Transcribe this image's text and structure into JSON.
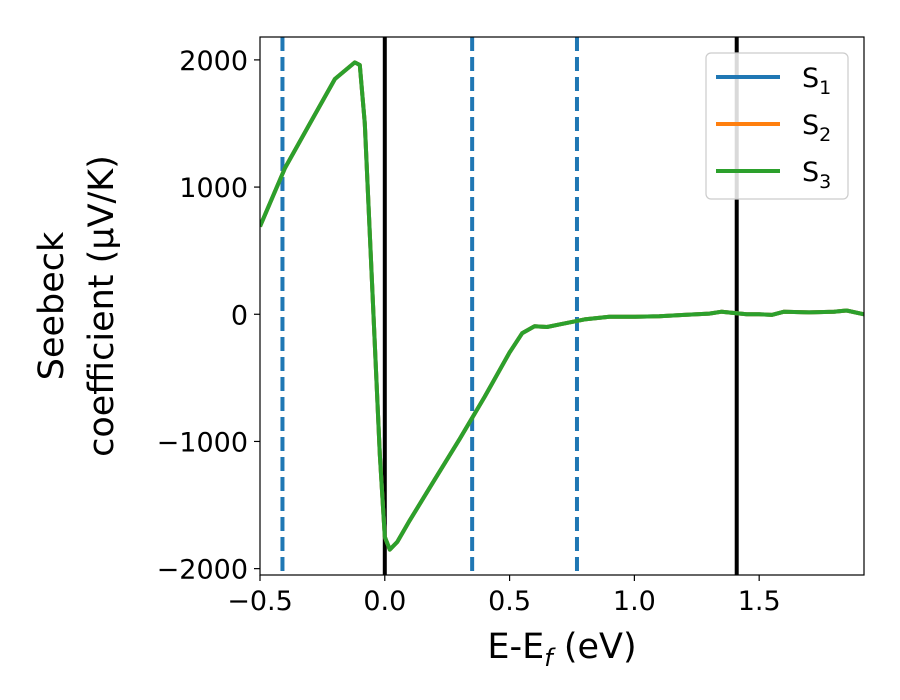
{
  "chart_data": {
    "type": "line",
    "xlabel": "E-E_f (eV)",
    "xlabel_parts": [
      "E-E",
      "f",
      " (eV)"
    ],
    "ylabel_lines": [
      "Seebeck",
      "coefficient  (μV/K)"
    ],
    "xlim": [
      -0.5,
      1.92
    ],
    "ylim": [
      -2050,
      2180
    ],
    "x_ticks": [
      -0.5,
      0.0,
      0.5,
      1.0,
      1.5
    ],
    "x_tick_labels": [
      "−0.5",
      "0.0",
      "0.5",
      "1.0",
      "1.5"
    ],
    "y_ticks": [
      -2000,
      -1000,
      0,
      1000,
      2000
    ],
    "y_tick_labels": [
      "−2000",
      "−1000",
      "0",
      "1000",
      "2000"
    ],
    "grid": false,
    "legend_position": "top-right",
    "series": [
      {
        "name": "S",
        "subscript": "1",
        "color": "#1f77b4",
        "x": [
          -0.5,
          -0.4,
          -0.3,
          -0.2,
          -0.12,
          -0.1,
          -0.08,
          -0.05,
          -0.02,
          0.0,
          0.02,
          0.05,
          0.1,
          0.2,
          0.3,
          0.4,
          0.5,
          0.55,
          0.6,
          0.65,
          0.7,
          0.8,
          0.9,
          1.0,
          1.1,
          1.2,
          1.3,
          1.35,
          1.4,
          1.45,
          1.5,
          1.55,
          1.6,
          1.7,
          1.8,
          1.85,
          1.92
        ],
        "y": [
          690,
          1150,
          1500,
          1850,
          1980,
          1960,
          1500,
          200,
          -1100,
          -1750,
          -1850,
          -1790,
          -1620,
          -1300,
          -980,
          -650,
          -300,
          -150,
          -95,
          -100,
          -80,
          -40,
          -20,
          -20,
          -15,
          -5,
          5,
          20,
          10,
          0,
          0,
          -5,
          20,
          15,
          20,
          30,
          0
        ]
      },
      {
        "name": "S",
        "subscript": "2",
        "color": "#ff7f0e",
        "x": [
          -0.5,
          -0.4,
          -0.3,
          -0.2,
          -0.12,
          -0.1,
          -0.08,
          -0.05,
          -0.02,
          0.0,
          0.02,
          0.05,
          0.1,
          0.2,
          0.3,
          0.4,
          0.5,
          0.55,
          0.6,
          0.65,
          0.7,
          0.8,
          0.9,
          1.0,
          1.1,
          1.2,
          1.3,
          1.35,
          1.4,
          1.45,
          1.5,
          1.55,
          1.6,
          1.7,
          1.8,
          1.85,
          1.92
        ],
        "y": [
          690,
          1150,
          1500,
          1850,
          1980,
          1960,
          1500,
          200,
          -1100,
          -1750,
          -1850,
          -1790,
          -1620,
          -1300,
          -980,
          -650,
          -300,
          -150,
          -95,
          -100,
          -80,
          -40,
          -20,
          -20,
          -15,
          -5,
          5,
          20,
          10,
          0,
          0,
          -5,
          20,
          15,
          20,
          30,
          0
        ]
      },
      {
        "name": "S",
        "subscript": "3",
        "color": "#2ca02c",
        "x": [
          -0.5,
          -0.4,
          -0.3,
          -0.2,
          -0.12,
          -0.1,
          -0.08,
          -0.05,
          -0.02,
          0.0,
          0.02,
          0.05,
          0.1,
          0.2,
          0.3,
          0.4,
          0.5,
          0.55,
          0.6,
          0.65,
          0.7,
          0.8,
          0.9,
          1.0,
          1.1,
          1.2,
          1.3,
          1.35,
          1.4,
          1.45,
          1.5,
          1.55,
          1.6,
          1.7,
          1.8,
          1.85,
          1.92
        ],
        "y": [
          690,
          1150,
          1500,
          1850,
          1980,
          1960,
          1500,
          200,
          -1100,
          -1750,
          -1850,
          -1790,
          -1620,
          -1300,
          -980,
          -650,
          -300,
          -150,
          -95,
          -100,
          -80,
          -40,
          -20,
          -20,
          -15,
          -5,
          5,
          20,
          10,
          0,
          0,
          -5,
          20,
          15,
          20,
          30,
          0
        ]
      }
    ],
    "vlines_solid": {
      "color": "#000000",
      "x": [
        0.0,
        1.41
      ]
    },
    "vlines_dashed": {
      "color": "#1f77b4",
      "x": [
        -0.41,
        0.35,
        0.77
      ]
    }
  }
}
